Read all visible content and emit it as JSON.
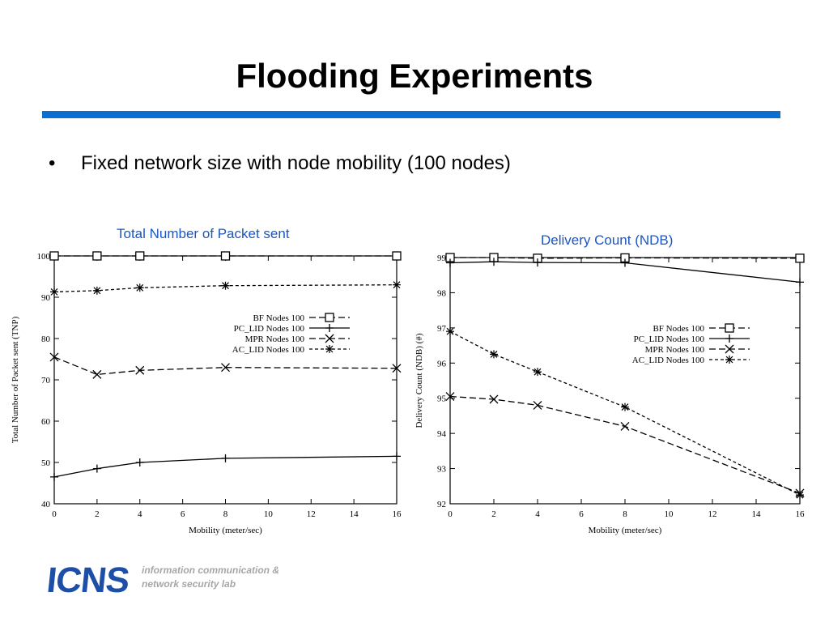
{
  "slide": {
    "title": "Flooding Experiments",
    "bullet_marker": "•",
    "bullet": "Fixed network size with node mobility (100 nodes)"
  },
  "logo": {
    "mark": "ICNS",
    "line1": "information communication &",
    "line2": "network security lab"
  },
  "colors": {
    "accent": "#0b6fd2",
    "caption": "#1a56c4",
    "logo": "#1d4fa8"
  },
  "chart_data": [
    {
      "type": "line",
      "caption": "Total Number of Packet sent",
      "xlabel": "Mobility (meter/sec)",
      "ylabel": "Total Number of Packet sent (TNP)",
      "xlim": [
        0,
        16
      ],
      "ylim": [
        40,
        100
      ],
      "xticks": [
        0,
        2,
        4,
        6,
        8,
        10,
        12,
        14,
        16
      ],
      "yticks": [
        40,
        50,
        60,
        70,
        80,
        90,
        100
      ],
      "grid": false,
      "legend_position": "right-upper",
      "series": [
        {
          "name": "BF Nodes 100",
          "marker": "square",
          "dash": "8,4",
          "x": [
            0,
            2,
            4,
            8,
            16
          ],
          "values": [
            100,
            100,
            100,
            100,
            100
          ]
        },
        {
          "name": "PC_LID Nodes 100",
          "marker": "plus",
          "dash": "",
          "x": [
            0,
            2,
            4,
            8,
            16
          ],
          "values": [
            46.5,
            48.5,
            50,
            51,
            51.5
          ]
        },
        {
          "name": "MPR Nodes 100",
          "marker": "cross",
          "dash": "8,4",
          "x": [
            0,
            2,
            4,
            8,
            16
          ],
          "values": [
            75.5,
            71.3,
            72.3,
            73,
            72.8
          ]
        },
        {
          "name": "AC_LID Nodes 100",
          "marker": "star",
          "dash": "4,3",
          "x": [
            0,
            2,
            4,
            8,
            16
          ],
          "values": [
            91.3,
            91.6,
            92.3,
            92.8,
            93
          ]
        }
      ]
    },
    {
      "type": "line",
      "caption": "Delivery Count (NDB)",
      "xlabel": "Mobility (meter/sec)",
      "ylabel": "Delivery Count (NDB) (#)",
      "xlim": [
        0,
        16
      ],
      "ylim": [
        92,
        99
      ],
      "xticks": [
        0,
        2,
        4,
        6,
        8,
        10,
        12,
        14,
        16
      ],
      "yticks": [
        92,
        93,
        94,
        95,
        96,
        97,
        98,
        99
      ],
      "grid": false,
      "legend_position": "right-upper",
      "series": [
        {
          "name": "BF Nodes 100",
          "marker": "square",
          "dash": "8,4",
          "x": [
            0,
            2,
            4,
            8,
            16
          ],
          "values": [
            99,
            99,
            98.98,
            98.99,
            98.98
          ]
        },
        {
          "name": "PC_LID Nodes 100",
          "marker": "plus",
          "dash": "",
          "x": [
            0,
            2,
            4,
            8,
            16
          ],
          "values": [
            98.85,
            98.88,
            98.86,
            98.85,
            98.3
          ]
        },
        {
          "name": "MPR Nodes 100",
          "marker": "cross",
          "dash": "8,4",
          "x": [
            0,
            2,
            4,
            8,
            16
          ],
          "values": [
            95.05,
            94.97,
            94.8,
            94.2,
            92.3
          ]
        },
        {
          "name": "AC_LID Nodes 100",
          "marker": "star",
          "dash": "4,3",
          "x": [
            0,
            2,
            4,
            8,
            16
          ],
          "values": [
            96.9,
            96.25,
            95.75,
            94.75,
            92.25
          ]
        }
      ]
    }
  ]
}
